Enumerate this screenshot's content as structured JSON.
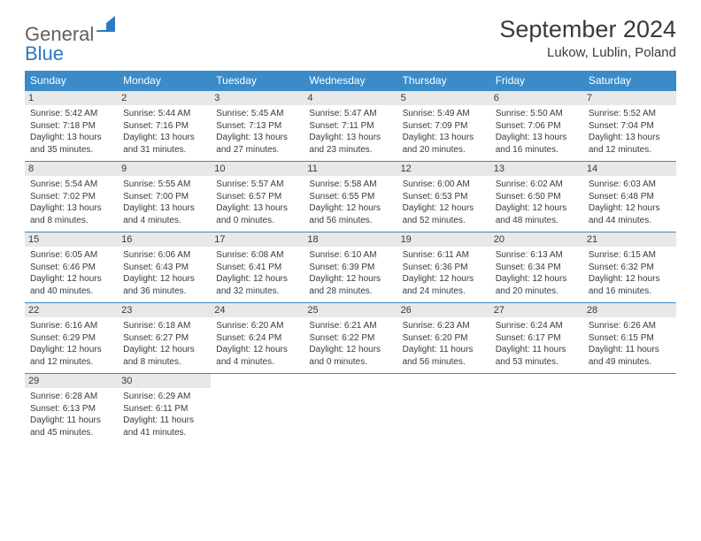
{
  "logo": {
    "text1": "General",
    "text2": "Blue"
  },
  "title": "September 2024",
  "location": "Lukow, Lublin, Poland",
  "colors": {
    "header_bg": "#3b8bc8",
    "header_fg": "#ffffff",
    "daynum_bg": "#e8e8e8",
    "text": "#3a3a3a",
    "logo_gray": "#606060",
    "logo_blue": "#2a7ac0",
    "rule": "#3b8bc8"
  },
  "weekdays": [
    "Sunday",
    "Monday",
    "Tuesday",
    "Wednesday",
    "Thursday",
    "Friday",
    "Saturday"
  ],
  "weeks": [
    [
      {
        "n": "1",
        "sr": "5:42 AM",
        "ss": "7:18 PM",
        "dl": "13 hours and 35 minutes."
      },
      {
        "n": "2",
        "sr": "5:44 AM",
        "ss": "7:16 PM",
        "dl": "13 hours and 31 minutes."
      },
      {
        "n": "3",
        "sr": "5:45 AM",
        "ss": "7:13 PM",
        "dl": "13 hours and 27 minutes."
      },
      {
        "n": "4",
        "sr": "5:47 AM",
        "ss": "7:11 PM",
        "dl": "13 hours and 23 minutes."
      },
      {
        "n": "5",
        "sr": "5:49 AM",
        "ss": "7:09 PM",
        "dl": "13 hours and 20 minutes."
      },
      {
        "n": "6",
        "sr": "5:50 AM",
        "ss": "7:06 PM",
        "dl": "13 hours and 16 minutes."
      },
      {
        "n": "7",
        "sr": "5:52 AM",
        "ss": "7:04 PM",
        "dl": "13 hours and 12 minutes."
      }
    ],
    [
      {
        "n": "8",
        "sr": "5:54 AM",
        "ss": "7:02 PM",
        "dl": "13 hours and 8 minutes."
      },
      {
        "n": "9",
        "sr": "5:55 AM",
        "ss": "7:00 PM",
        "dl": "13 hours and 4 minutes."
      },
      {
        "n": "10",
        "sr": "5:57 AM",
        "ss": "6:57 PM",
        "dl": "13 hours and 0 minutes."
      },
      {
        "n": "11",
        "sr": "5:58 AM",
        "ss": "6:55 PM",
        "dl": "12 hours and 56 minutes."
      },
      {
        "n": "12",
        "sr": "6:00 AM",
        "ss": "6:53 PM",
        "dl": "12 hours and 52 minutes."
      },
      {
        "n": "13",
        "sr": "6:02 AM",
        "ss": "6:50 PM",
        "dl": "12 hours and 48 minutes."
      },
      {
        "n": "14",
        "sr": "6:03 AM",
        "ss": "6:48 PM",
        "dl": "12 hours and 44 minutes."
      }
    ],
    [
      {
        "n": "15",
        "sr": "6:05 AM",
        "ss": "6:46 PM",
        "dl": "12 hours and 40 minutes."
      },
      {
        "n": "16",
        "sr": "6:06 AM",
        "ss": "6:43 PM",
        "dl": "12 hours and 36 minutes."
      },
      {
        "n": "17",
        "sr": "6:08 AM",
        "ss": "6:41 PM",
        "dl": "12 hours and 32 minutes."
      },
      {
        "n": "18",
        "sr": "6:10 AM",
        "ss": "6:39 PM",
        "dl": "12 hours and 28 minutes."
      },
      {
        "n": "19",
        "sr": "6:11 AM",
        "ss": "6:36 PM",
        "dl": "12 hours and 24 minutes."
      },
      {
        "n": "20",
        "sr": "6:13 AM",
        "ss": "6:34 PM",
        "dl": "12 hours and 20 minutes."
      },
      {
        "n": "21",
        "sr": "6:15 AM",
        "ss": "6:32 PM",
        "dl": "12 hours and 16 minutes."
      }
    ],
    [
      {
        "n": "22",
        "sr": "6:16 AM",
        "ss": "6:29 PM",
        "dl": "12 hours and 12 minutes."
      },
      {
        "n": "23",
        "sr": "6:18 AM",
        "ss": "6:27 PM",
        "dl": "12 hours and 8 minutes."
      },
      {
        "n": "24",
        "sr": "6:20 AM",
        "ss": "6:24 PM",
        "dl": "12 hours and 4 minutes."
      },
      {
        "n": "25",
        "sr": "6:21 AM",
        "ss": "6:22 PM",
        "dl": "12 hours and 0 minutes."
      },
      {
        "n": "26",
        "sr": "6:23 AM",
        "ss": "6:20 PM",
        "dl": "11 hours and 56 minutes."
      },
      {
        "n": "27",
        "sr": "6:24 AM",
        "ss": "6:17 PM",
        "dl": "11 hours and 53 minutes."
      },
      {
        "n": "28",
        "sr": "6:26 AM",
        "ss": "6:15 PM",
        "dl": "11 hours and 49 minutes."
      }
    ],
    [
      {
        "n": "29",
        "sr": "6:28 AM",
        "ss": "6:13 PM",
        "dl": "11 hours and 45 minutes."
      },
      {
        "n": "30",
        "sr": "6:29 AM",
        "ss": "6:11 PM",
        "dl": "11 hours and 41 minutes."
      },
      null,
      null,
      null,
      null,
      null
    ]
  ],
  "labels": {
    "sunrise": "Sunrise:",
    "sunset": "Sunset:",
    "daylight": "Daylight:"
  }
}
